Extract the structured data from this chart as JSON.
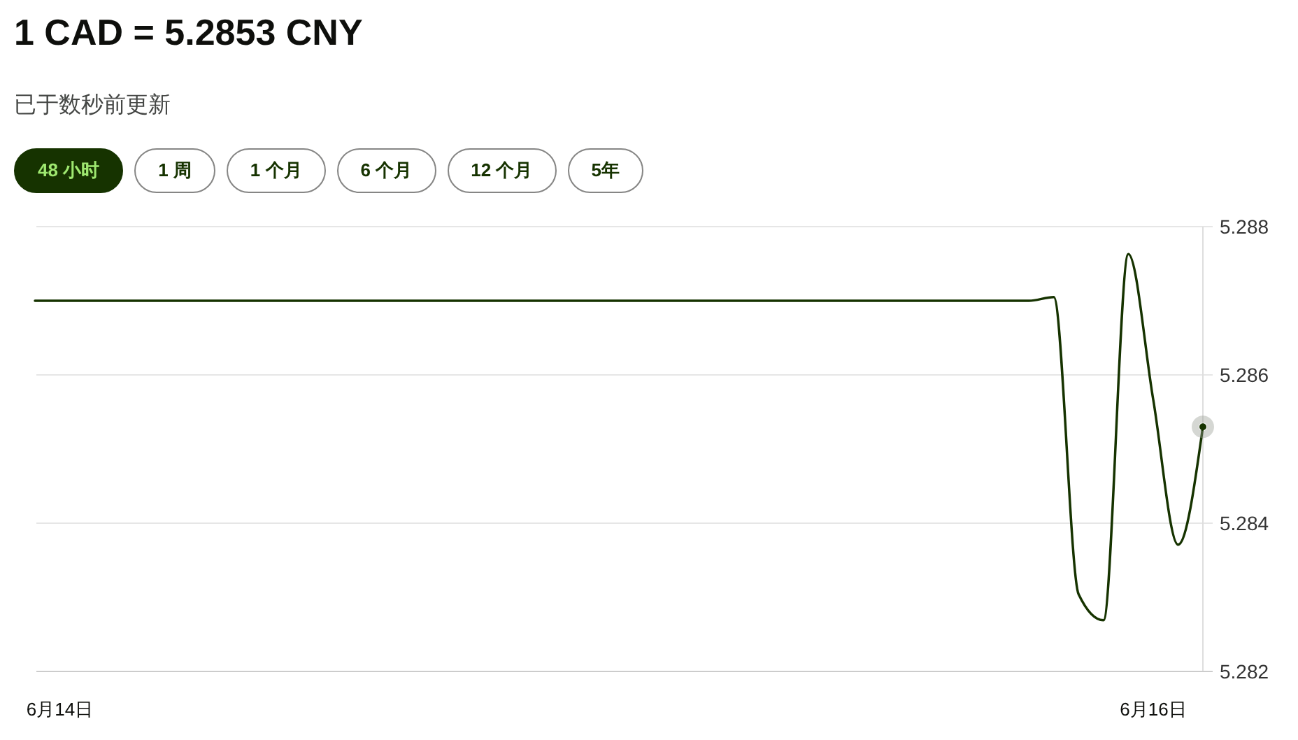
{
  "chart_data": {
    "type": "line",
    "title": "1 CAD = 5.2853 CNY",
    "subtitle": "已于数秒前更新",
    "annotations": [
      "48 小时",
      "1 周",
      "1 个月",
      "6 个月",
      "12 个月",
      "5年"
    ],
    "categories": [
      null,
      "6月14日",
      null,
      null,
      null,
      null,
      null,
      null,
      null,
      null,
      null,
      null,
      null,
      null,
      null,
      null,
      null,
      null,
      null,
      null,
      null,
      null,
      null,
      null,
      null,
      null,
      null,
      null,
      null,
      null,
      null,
      null,
      null,
      null,
      null,
      null,
      null,
      null,
      null,
      null,
      null,
      null,
      null,
      null,
      null,
      "6月16日",
      null,
      null
    ],
    "series": [
      {
        "color": "#163300",
        "values": [
          5.287,
          5.287,
          5.287,
          5.287,
          5.287,
          5.287,
          5.287,
          5.287,
          5.287,
          5.287,
          5.287,
          5.287,
          5.287,
          5.287,
          5.287,
          5.287,
          5.287,
          5.287,
          5.287,
          5.287,
          5.287,
          5.287,
          5.287,
          5.287,
          5.287,
          5.287,
          5.287,
          5.287,
          5.287,
          5.287,
          5.287,
          5.287,
          5.287,
          5.287,
          5.287,
          5.287,
          5.287,
          5.287,
          5.287,
          5.287,
          5.287,
          5.28705,
          5.28304,
          5.28269,
          5.28763,
          5.28567,
          5.28371,
          5.2853
        ]
      },
      {
        "type": "scatter",
        "color": "#163300",
        "values": [
          null,
          null,
          null,
          null,
          null,
          null,
          null,
          null,
          null,
          null,
          null,
          null,
          null,
          null,
          null,
          null,
          null,
          null,
          null,
          null,
          null,
          null,
          null,
          null,
          null,
          null,
          null,
          null,
          null,
          null,
          null,
          null,
          null,
          null,
          null,
          null,
          null,
          null,
          null,
          null,
          null,
          null,
          null,
          null,
          null,
          null,
          null,
          5.2853
        ]
      }
    ],
    "ylim": [
      5.282,
      5.288
    ],
    "yticks": [
      5.282,
      5.284,
      5.286,
      5.288
    ],
    "grid": "y",
    "line_style": "solid"
  }
}
